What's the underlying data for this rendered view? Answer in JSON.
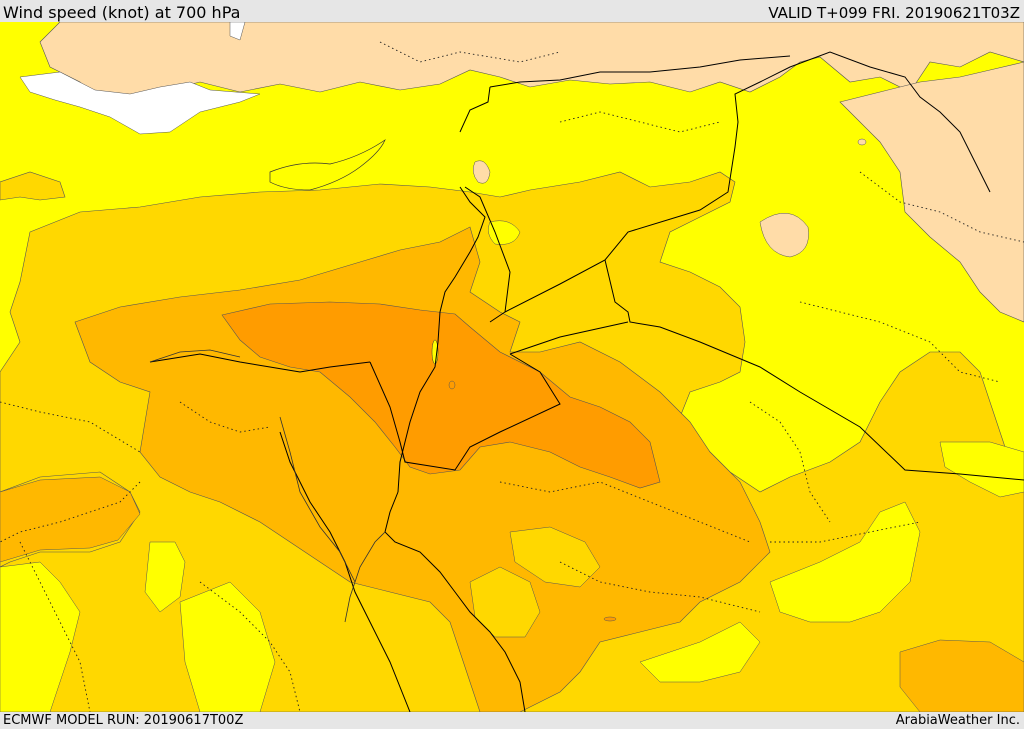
{
  "header": {
    "title": "Wind speed (knot) at 700 hPa",
    "valid": "VALID T+099 FRI. 20190621T03Z"
  },
  "footer": {
    "model_run": "ECMWF MODEL RUN: 20190617T00Z",
    "credit": "ArabiaWeather Inc."
  },
  "palette": {
    "land_low": "#ffdca8",
    "sea_white": "#ffffff",
    "band_1": "#ffff00",
    "band_2": "#ffd800",
    "band_3": "#ffb800",
    "band_4": "#ff9c00",
    "border": "#000000"
  }
}
